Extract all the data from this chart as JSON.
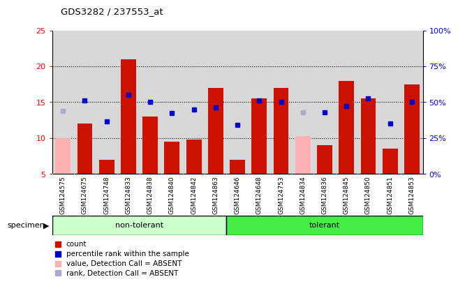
{
  "title": "GDS3282 / 237553_at",
  "samples": [
    "GSM124575",
    "GSM124675",
    "GSM124748",
    "GSM124833",
    "GSM124838",
    "GSM124840",
    "GSM124842",
    "GSM124863",
    "GSM124646",
    "GSM124648",
    "GSM124753",
    "GSM124834",
    "GSM124836",
    "GSM124845",
    "GSM124850",
    "GSM124851",
    "GSM124853"
  ],
  "non_tolerant_count": 8,
  "tolerant_count": 9,
  "count_values": [
    null,
    12.0,
    7.0,
    21.0,
    13.0,
    9.5,
    9.8,
    17.0,
    7.0,
    15.5,
    17.0,
    null,
    9.0,
    18.0,
    15.5,
    8.5,
    17.5
  ],
  "absent_value": [
    10.0,
    null,
    null,
    null,
    null,
    null,
    null,
    null,
    null,
    null,
    null,
    10.3,
    null,
    null,
    null,
    null,
    null
  ],
  "rank_values_blue": [
    null,
    15.2,
    12.3,
    16.0,
    15.0,
    13.5,
    14.0,
    14.3,
    11.8,
    15.2,
    15.0,
    null,
    13.6,
    14.5,
    15.5,
    12.0,
    15.0
  ],
  "rank_absent_blue": [
    13.8,
    null,
    null,
    null,
    null,
    null,
    null,
    null,
    null,
    null,
    null,
    13.6,
    null,
    null,
    null,
    null,
    null
  ],
  "ylim_left": [
    5,
    25
  ],
  "ylim_right": [
    0,
    100
  ],
  "yticks_left": [
    5,
    10,
    15,
    20,
    25
  ],
  "yticks_right": [
    0,
    25,
    50,
    75,
    100
  ],
  "ytick_labels_right": [
    "0%",
    "25%",
    "50%",
    "75%",
    "100%"
  ],
  "grid_ticks": [
    10,
    15,
    20
  ],
  "bar_color": "#cc1100",
  "absent_bar_color": "#ffb0b0",
  "dot_color": "#0000cc",
  "absent_dot_color": "#aaaacc",
  "bg_color_plot": "#d8d8d8",
  "bg_color_nontol": "#ccffcc",
  "bg_color_tol": "#44ee44",
  "legend_items": [
    {
      "label": "count",
      "color": "#cc1100"
    },
    {
      "label": "percentile rank within the sample",
      "color": "#0000cc"
    },
    {
      "label": "value, Detection Call = ABSENT",
      "color": "#ffb0b0"
    },
    {
      "label": "rank, Detection Call = ABSENT",
      "color": "#aaaacc"
    }
  ]
}
